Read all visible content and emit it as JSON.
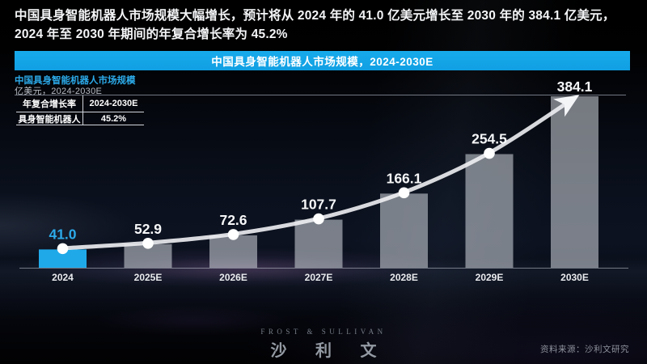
{
  "headline": "中国具身智能机器人市场规模大幅增长，预计将从 2024 年的 41.0 亿美元增长至 2030 年的 384.1 亿美元，2024 年至 2030 年期间的年复合增长率为 45.2%",
  "banner": {
    "title": "中国具身智能机器人市场规模，2024-2030E"
  },
  "chart_header": {
    "title": "中国具身智能机器人市场规模",
    "subtitle": "亿美元，2024-2030E"
  },
  "cagr_table": {
    "header": [
      "年复合增长率",
      "2024-2030E"
    ],
    "row": [
      "具身智能机器人",
      "45.2%"
    ]
  },
  "chart_data": {
    "type": "bar",
    "title": "中国具身智能机器人市场规模，2024-2030E",
    "xlabel": "",
    "ylabel": "亿美元",
    "categories": [
      "2024",
      "2025E",
      "2026E",
      "2027E",
      "2028E",
      "2029E",
      "2030E"
    ],
    "values": [
      41.0,
      52.9,
      72.6,
      107.7,
      166.1,
      254.5,
      384.1
    ],
    "display_values": [
      "41.0",
      "52.9",
      "72.6",
      "107.7",
      "166.1",
      "254.5",
      "384.1"
    ],
    "series_name": "具身智能机器人",
    "cagr_2024_2030e": "45.2%",
    "highlight_category": "2024",
    "trend_overlay": "smooth ascending line with white dots and arrowhead at 2030E",
    "grid": false,
    "legend_position": "none",
    "ylim": [
      0,
      420
    ],
    "colors": {
      "highlight_bar": "#1fa9e9",
      "bar": "#c9ced6",
      "accent_blue": "#2caae9",
      "line": "#eef0f3",
      "value_label": "#f6f7f8",
      "banner": "#13a7e9"
    }
  },
  "footer": {
    "logo_en": "FROST & SULLIVAN",
    "logo_cn": "沙 利 文",
    "source": "资料来源：沙利文研究"
  }
}
